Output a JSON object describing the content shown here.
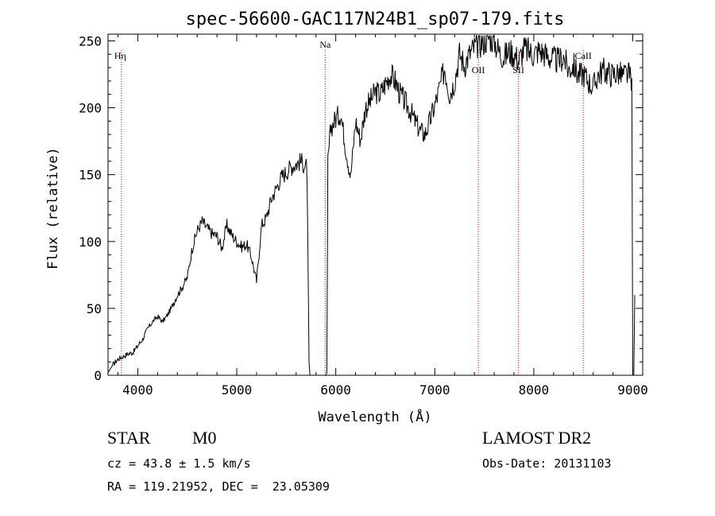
{
  "chart_data": {
    "type": "line",
    "title": "spec-56600-GAC117N24B1_sp07-179.fits",
    "xlabel": "Wavelength (Å)",
    "ylabel": "Flux (relative)",
    "xlim": [
      3700,
      9100
    ],
    "ylim": [
      0,
      255
    ],
    "x_ticks": [
      4000,
      5000,
      6000,
      7000,
      8000,
      9000
    ],
    "y_ticks": [
      0,
      50,
      100,
      150,
      200,
      250
    ],
    "grid": false,
    "series": [
      {
        "points": [
          [
            3700,
            2
          ],
          [
            3750,
            8
          ],
          [
            3800,
            12
          ],
          [
            3850,
            14
          ],
          [
            3900,
            16
          ],
          [
            3950,
            17
          ],
          [
            4000,
            22
          ],
          [
            4050,
            27
          ],
          [
            4100,
            35
          ],
          [
            4150,
            40
          ],
          [
            4200,
            44
          ],
          [
            4250,
            40
          ],
          [
            4300,
            45
          ],
          [
            4350,
            52
          ],
          [
            4400,
            60
          ],
          [
            4450,
            66
          ],
          [
            4500,
            73
          ],
          [
            4550,
            95
          ],
          [
            4600,
            108
          ],
          [
            4650,
            115
          ],
          [
            4700,
            110
          ],
          [
            4750,
            106
          ],
          [
            4800,
            104
          ],
          [
            4850,
            95
          ],
          [
            4900,
            112
          ],
          [
            4950,
            105
          ],
          [
            5000,
            100
          ],
          [
            5050,
            96
          ],
          [
            5100,
            98
          ],
          [
            5150,
            88
          ],
          [
            5200,
            70
          ],
          [
            5250,
            112
          ],
          [
            5300,
            118
          ],
          [
            5350,
            132
          ],
          [
            5400,
            140
          ],
          [
            5450,
            148
          ],
          [
            5500,
            152
          ],
          [
            5550,
            156
          ],
          [
            5600,
            158
          ],
          [
            5650,
            160
          ],
          [
            5700,
            156
          ],
          [
            5710,
            150
          ],
          [
            5720,
            80
          ],
          [
            5730,
            10
          ],
          [
            5740,
            0
          ],
          [
            5760,
            0
          ],
          [
            5800,
            0
          ],
          [
            5850,
            0
          ],
          [
            5900,
            0
          ],
          [
            5910,
            2
          ],
          [
            5920,
            160
          ],
          [
            5950,
            185
          ],
          [
            6000,
            192
          ],
          [
            6050,
            196
          ],
          [
            6100,
            170
          ],
          [
            6150,
            148
          ],
          [
            6200,
            190
          ],
          [
            6250,
            176
          ],
          [
            6300,
            200
          ],
          [
            6350,
            205
          ],
          [
            6400,
            212
          ],
          [
            6450,
            210
          ],
          [
            6500,
            218
          ],
          [
            6550,
            225
          ],
          [
            6600,
            220
          ],
          [
            6650,
            210
          ],
          [
            6700,
            204
          ],
          [
            6750,
            198
          ],
          [
            6800,
            190
          ],
          [
            6850,
            183
          ],
          [
            6900,
            180
          ],
          [
            6950,
            190
          ],
          [
            7000,
            202
          ],
          [
            7050,
            215
          ],
          [
            7100,
            230
          ],
          [
            7150,
            210
          ],
          [
            7200,
            220
          ],
          [
            7250,
            240
          ],
          [
            7300,
            232
          ],
          [
            7350,
            240
          ],
          [
            7400,
            245
          ],
          [
            7450,
            248
          ],
          [
            7500,
            250
          ],
          [
            7550,
            253
          ],
          [
            7600,
            250
          ],
          [
            7650,
            242
          ],
          [
            7700,
            238
          ],
          [
            7750,
            242
          ],
          [
            7800,
            240
          ],
          [
            7850,
            235
          ],
          [
            7900,
            244
          ],
          [
            7950,
            242
          ],
          [
            8000,
            240
          ],
          [
            8050,
            243
          ],
          [
            8100,
            241
          ],
          [
            8150,
            238
          ],
          [
            8200,
            236
          ],
          [
            8250,
            235
          ],
          [
            8300,
            238
          ],
          [
            8350,
            228
          ],
          [
            8400,
            232
          ],
          [
            8450,
            224
          ],
          [
            8500,
            226
          ],
          [
            8550,
            220
          ],
          [
            8600,
            215
          ],
          [
            8650,
            225
          ],
          [
            8700,
            228
          ],
          [
            8750,
            226
          ],
          [
            8800,
            225
          ],
          [
            8850,
            226
          ],
          [
            8900,
            224
          ],
          [
            8950,
            225
          ],
          [
            8990,
            222
          ],
          [
            9000,
            0
          ],
          [
            9010,
            0
          ],
          [
            9020,
            60
          ]
        ]
      }
    ],
    "annotations": [
      {
        "label": "Hη",
        "x": 3835,
        "style": "dotted-red"
      },
      {
        "label": "Na",
        "x": 5893,
        "style": "dotted-red"
      },
      {
        "label": "OII",
        "x": 7440,
        "style": "dotted-red"
      },
      {
        "label": "SII",
        "x": 7845,
        "style": "dotted-red"
      },
      {
        "label": "CaII",
        "x": 8500,
        "style": "dotted-red"
      }
    ],
    "colors": {
      "spectrum": "#000000",
      "line_markers": "#cc0000",
      "axes": "#000000"
    }
  },
  "info": {
    "object_class": "STAR",
    "subclass": "M0",
    "survey": "LAMOST DR2",
    "cz": "cz = 43.8 ± 1.5 km/s",
    "obs_date": "Obs-Date: 20131103",
    "coords": "RA = 119.21952, DEC =  23.05309"
  }
}
